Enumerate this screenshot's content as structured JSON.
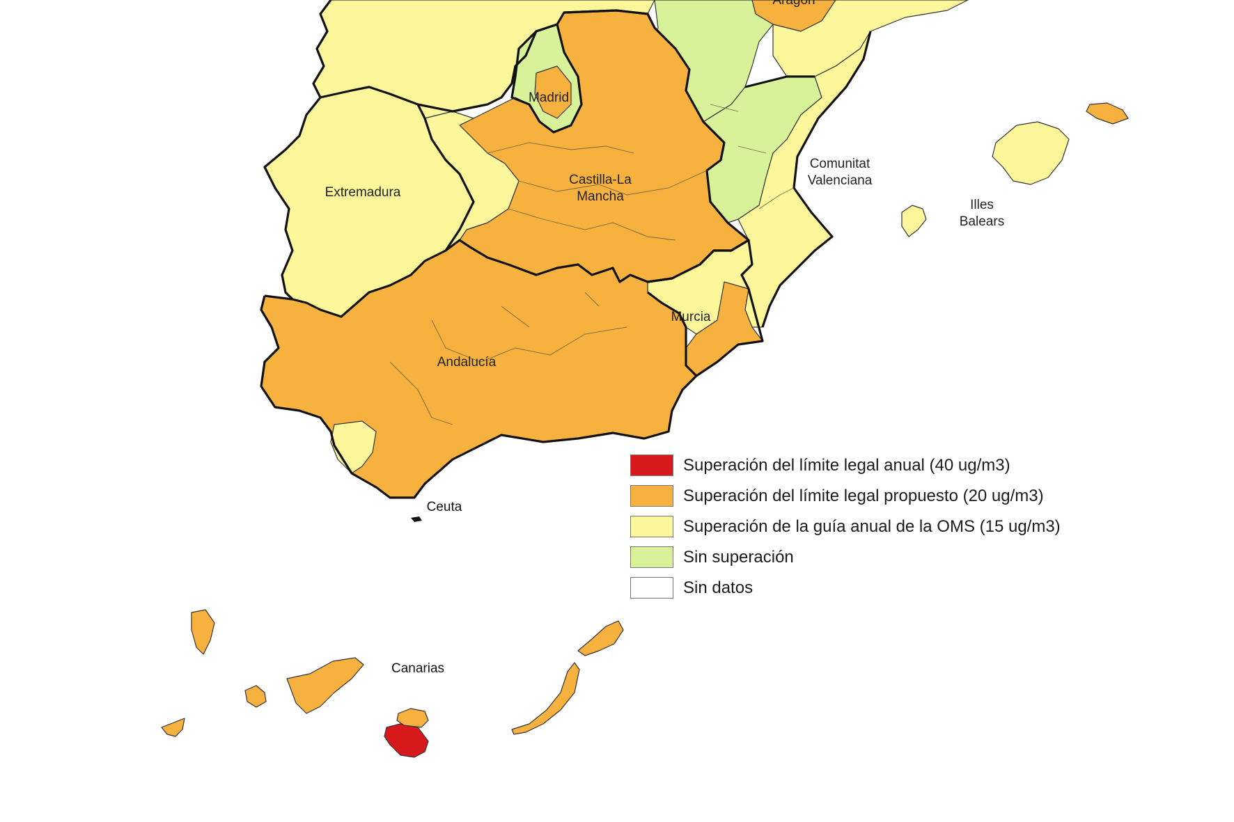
{
  "colors": {
    "red": "#d7191c",
    "orange": "#f6b13f",
    "yellow": "#fbf79a",
    "green": "#d8f29a",
    "white": "#ffffff"
  },
  "regions": {
    "aragon": "Aragón",
    "madrid": "Madrid",
    "extremadura": "Extremadura",
    "castilla_la_mancha": [
      "Castilla-La",
      "Mancha"
    ],
    "comunitat_valenciana": [
      "Comunitat",
      "Valenciana"
    ],
    "illes_balears": [
      "Illes",
      "Balears"
    ],
    "murcia": "Murcia",
    "andalucia": "Andalucía",
    "ceuta": "Ceuta",
    "canarias": "Canarias"
  },
  "legend": [
    {
      "color": "#d7191c",
      "label": "Superación del límite legal anual (40 ug/m3)"
    },
    {
      "color": "#f6b13f",
      "label": "Superación del límite legal propuesto (20 ug/m3)"
    },
    {
      "color": "#fbf79a",
      "label": "Superación de la guía anual de la OMS (15 ug/m3)"
    },
    {
      "color": "#d8f29a",
      "label": "Sin superación"
    },
    {
      "color": "#ffffff",
      "label": "Sin datos"
    }
  ]
}
